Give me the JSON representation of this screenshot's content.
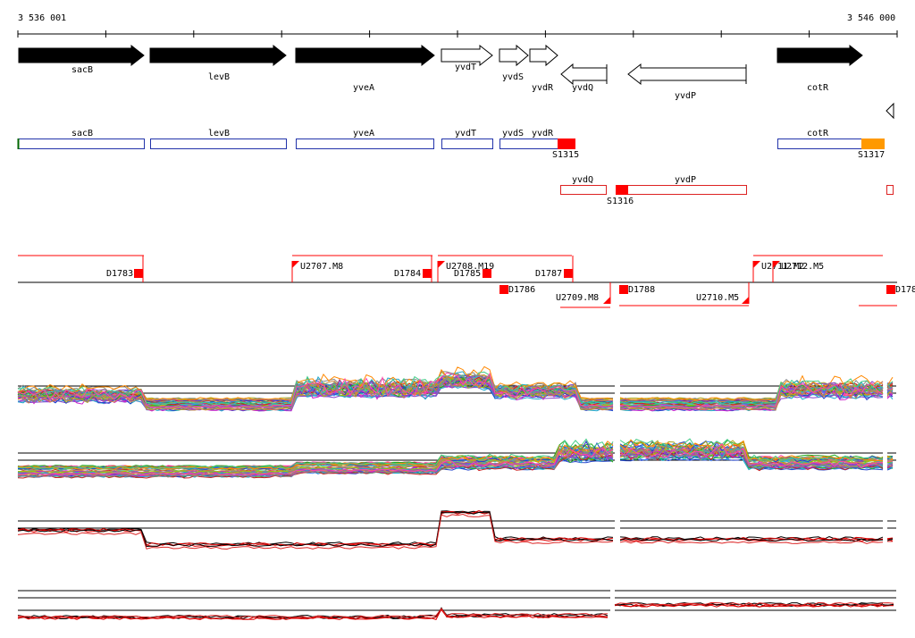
{
  "coordinates": {
    "start": "3 536 001",
    "end": "3 546 000"
  },
  "genes": [
    {
      "name": "sacB",
      "strand": "+",
      "known": true
    },
    {
      "name": "levB",
      "strand": "+",
      "known": true
    },
    {
      "name": "yveA",
      "strand": "+",
      "known": true
    },
    {
      "name": "yvdT",
      "strand": "+",
      "known": false
    },
    {
      "name": "yvdS",
      "strand": "+",
      "known": false
    },
    {
      "name": "yvdR",
      "strand": "+",
      "known": false
    },
    {
      "name": "yvdQ",
      "strand": "-",
      "known": false
    },
    {
      "name": "yvdP",
      "strand": "-",
      "known": false
    },
    {
      "name": "cotR",
      "strand": "+",
      "known": true
    }
  ],
  "segment_labels": {
    "forward": [
      "sacB",
      "levB",
      "yveA",
      "yvdT",
      "yvdS",
      "yvdR",
      "cotR"
    ],
    "reverse": [
      "yvdQ",
      "yvdP"
    ],
    "S_forward": [
      "S1315",
      "S1317"
    ],
    "S_reverse": [
      "S1316"
    ]
  },
  "features": {
    "upper": [
      "U2707.M8",
      "U2708.M19",
      "U2711.M2",
      "U2712.M5"
    ],
    "upper_D": [
      "D1783",
      "D1784",
      "D1785",
      "D1787"
    ],
    "lower_D": [
      "D1786",
      "D1788",
      "D178"
    ],
    "lower_U": [
      "U2709.M8",
      "U2710.M5"
    ]
  },
  "colors": {
    "gene_known": "#000000",
    "segment_forward": "#2233aa",
    "segment_reverse": "#dd2222",
    "feature": "#ff0000",
    "highlight_orange": "#ff9900"
  }
}
